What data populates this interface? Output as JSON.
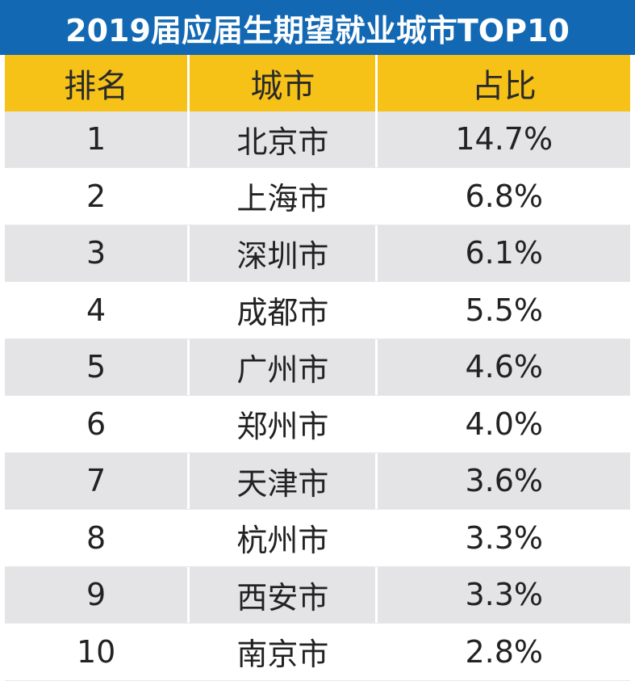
{
  "title": "2019届应届生期望就业城市TOP10",
  "colors": {
    "title_bg": "#1268b3",
    "header_bg": "#f6c218",
    "row_alt_bg": "#e4e4e6"
  },
  "chart_data": {
    "type": "table",
    "title": "2019届应届生期望就业城市TOP10",
    "columns": [
      "排名",
      "城市",
      "占比"
    ],
    "rows": [
      [
        "1",
        "北京市",
        "14.7%"
      ],
      [
        "2",
        "上海市",
        "6.8%"
      ],
      [
        "3",
        "深圳市",
        "6.1%"
      ],
      [
        "4",
        "成都市",
        "5.5%"
      ],
      [
        "5",
        "广州市",
        "4.6%"
      ],
      [
        "6",
        "郑州市",
        "4.0%"
      ],
      [
        "7",
        "天津市",
        "3.6%"
      ],
      [
        "8",
        "杭州市",
        "3.3%"
      ],
      [
        "9",
        "西安市",
        "3.3%"
      ],
      [
        "10",
        "南京市",
        "2.8%"
      ]
    ]
  }
}
